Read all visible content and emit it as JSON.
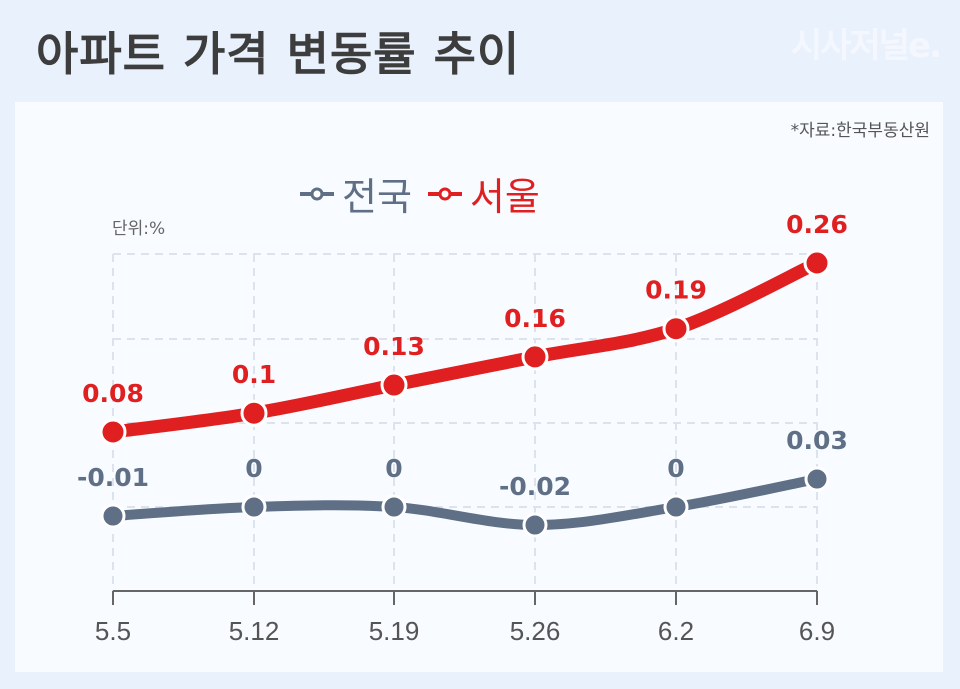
{
  "header": {
    "title": "아파트 가격 변동률 추이",
    "brand": "시사저널e."
  },
  "source": "*자료:한국부동산원",
  "unit_label": "단위:%",
  "legend": [
    {
      "label": "전국",
      "color": "#5f6f86"
    },
    {
      "label": "서울",
      "color": "#e02020"
    }
  ],
  "chart_data": {
    "type": "line",
    "title": "아파트 가격 변동률 추이",
    "xlabel": "",
    "ylabel": "단위:%",
    "categories": [
      "5.5",
      "5.12",
      "5.19",
      "5.26",
      "6.2",
      "6.9"
    ],
    "series": [
      {
        "name": "전국",
        "color": "#5f6f86",
        "values": [
          -0.01,
          0,
          0,
          -0.02,
          0,
          0.03
        ]
      },
      {
        "name": "서울",
        "color": "#e02020",
        "values": [
          0.08,
          0.1,
          0.13,
          0.16,
          0.19,
          0.26
        ]
      }
    ],
    "grid": true,
    "legend_position": "top"
  }
}
